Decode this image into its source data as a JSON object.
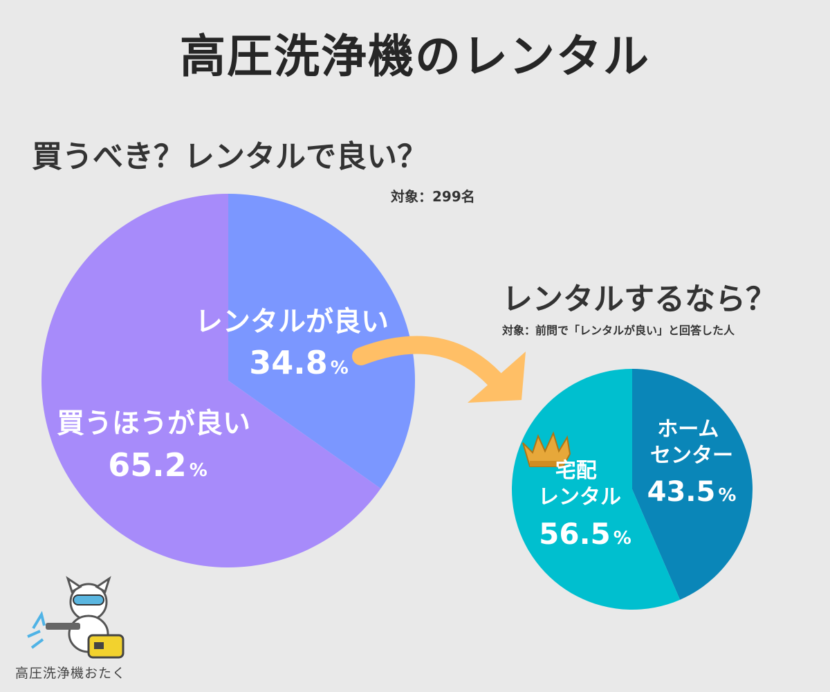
{
  "title": "高圧洗浄機のレンタル",
  "brand": "高圧洗浄機おたく",
  "chart_data": [
    {
      "type": "pie",
      "title": "買うべき？レンタルで良い？",
      "subtitle": "対象：299名",
      "slices": [
        {
          "label": "レンタルが良い",
          "value": 34.8,
          "value_text": "34.8",
          "unit": "%",
          "color": "#7b97ff"
        },
        {
          "label": "買うほうが良い",
          "value": 65.2,
          "value_text": "65.2",
          "unit": "%",
          "color": "#a78bfa"
        }
      ]
    },
    {
      "type": "pie",
      "title": "レンタルするなら？",
      "subtitle": "対象：前問で「レンタルが良い」と回答した人",
      "slices": [
        {
          "label": "ホーム\nセンター",
          "value": 43.5,
          "value_text": "43.5",
          "unit": "%",
          "color": "#0a86b8"
        },
        {
          "label": "宅配\nレンタル",
          "value": 56.5,
          "value_text": "56.5",
          "unit": "%",
          "color": "#00bfcf"
        }
      ]
    }
  ],
  "colors": {
    "background": "#e9e9e9",
    "arrow": "#ffbf66",
    "crown": "#e7a83a"
  },
  "icons": [
    "crown-icon",
    "mascot-dog-with-pressure-washer"
  ]
}
